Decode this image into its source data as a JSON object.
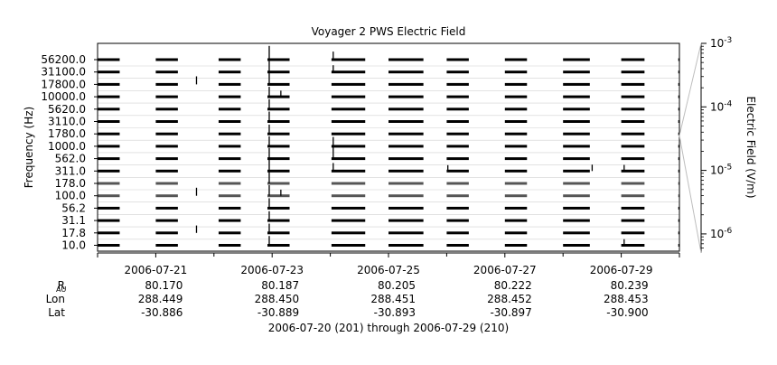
{
  "chart_data": {
    "type": "heatmap",
    "title": "Voyager 2 PWS Electric Field",
    "ylabel": "Frequency (Hz)",
    "colorbar_label": "Electric Field (V/m)",
    "colorbar_scale": "log",
    "colorbar_ticks": [
      {
        "base": "10",
        "exp": "-3",
        "value": 0.001
      },
      {
        "base": "10",
        "exp": "-4",
        "value": 0.0001
      },
      {
        "base": "10",
        "exp": "-5",
        "value": 1e-05
      },
      {
        "base": "10",
        "exp": "-6",
        "value": 1e-06
      }
    ],
    "channels": [
      "56200.0",
      "31100.0",
      "17800.0",
      "10000.0",
      "5620.0",
      "3110.0",
      "1780.0",
      "1000.0",
      "562.0",
      "311.0",
      "178.0",
      "100.0",
      "56.2",
      "31.1",
      "17.8",
      "10.0"
    ],
    "x_range_days": [
      201,
      211
    ],
    "x_tick_labels": [
      {
        "day": 202,
        "label": "2006-07-21"
      },
      {
        "day": 204,
        "label": "2006-07-23"
      },
      {
        "day": 206,
        "label": "2006-07-25"
      },
      {
        "day": 208,
        "label": "2006-07-27"
      },
      {
        "day": 210,
        "label": "2006-07-29"
      }
    ],
    "x_minor_days": [
      203,
      205,
      207,
      209
    ],
    "data_segments_days": [
      [
        201.0,
        201.38
      ],
      [
        202.0,
        202.38
      ],
      [
        203.08,
        203.46
      ],
      [
        203.92,
        204.3
      ],
      [
        205.02,
        205.6
      ],
      [
        206.0,
        206.6
      ],
      [
        207.0,
        207.38
      ],
      [
        208.0,
        208.38
      ],
      [
        209.0,
        209.46
      ],
      [
        210.0,
        210.4
      ],
      [
        210.98,
        211.0
      ]
    ],
    "grey_row_channels": [
      "178.0",
      "100.0"
    ],
    "bursts": [
      {
        "day": 203.95,
        "channel": "56200.0",
        "intensity": 0.8
      },
      {
        "day": 203.95,
        "channel": "31100.0",
        "intensity": 0.7
      },
      {
        "day": 203.95,
        "channel": "17800.0",
        "intensity": 0.6
      },
      {
        "day": 203.95,
        "channel": "10000.0",
        "intensity": 0.5
      },
      {
        "day": 203.95,
        "channel": "5620.0",
        "intensity": 0.5
      },
      {
        "day": 203.95,
        "channel": "3110.0",
        "intensity": 0.5
      },
      {
        "day": 203.95,
        "channel": "1780.0",
        "intensity": 0.45
      },
      {
        "day": 203.95,
        "channel": "1000.0",
        "intensity": 0.5
      },
      {
        "day": 203.95,
        "channel": "562.0",
        "intensity": 0.55
      },
      {
        "day": 203.95,
        "channel": "311.0",
        "intensity": 0.6
      },
      {
        "day": 203.95,
        "channel": "178.0",
        "intensity": 0.7
      },
      {
        "day": 203.95,
        "channel": "100.0",
        "intensity": 0.55
      },
      {
        "day": 203.95,
        "channel": "56.2",
        "intensity": 0.5
      },
      {
        "day": 203.95,
        "channel": "31.1",
        "intensity": 0.45
      },
      {
        "day": 203.95,
        "channel": "17.8",
        "intensity": 0.45
      },
      {
        "day": 203.95,
        "channel": "10.0",
        "intensity": 0.45
      },
      {
        "day": 205.05,
        "channel": "56200.0",
        "intensity": 0.35
      },
      {
        "day": 205.05,
        "channel": "31100.0",
        "intensity": 0.25
      },
      {
        "day": 205.05,
        "channel": "1000.0",
        "intensity": 0.45
      },
      {
        "day": 205.05,
        "channel": "562.0",
        "intensity": 0.75
      },
      {
        "day": 205.05,
        "channel": "311.0",
        "intensity": 0.35
      },
      {
        "day": 202.7,
        "channel": "17800.0",
        "intensity": 0.35
      },
      {
        "day": 202.7,
        "channel": "100.0",
        "intensity": 0.35
      },
      {
        "day": 202.7,
        "channel": "17.8",
        "intensity": 0.3
      },
      {
        "day": 204.15,
        "channel": "10000.0",
        "intensity": 0.2
      },
      {
        "day": 204.15,
        "channel": "100.0",
        "intensity": 0.2
      },
      {
        "day": 209.5,
        "channel": "311.0",
        "intensity": 0.22
      },
      {
        "day": 210.05,
        "channel": "10.0",
        "intensity": 0.2
      },
      {
        "day": 210.05,
        "channel": "311.0",
        "intensity": 0.2
      },
      {
        "day": 207.02,
        "channel": "311.0",
        "intensity": 0.18
      }
    ]
  },
  "ephemeris": {
    "row_labels": [
      "R",
      "Lon",
      "Lat"
    ],
    "r_subscript": "AU",
    "rows": [
      [
        "80.170",
        "80.187",
        "80.205",
        "80.222",
        "80.239"
      ],
      [
        "288.449",
        "288.450",
        "288.451",
        "288.452",
        "288.453"
      ],
      [
        "-30.886",
        "-30.889",
        "-30.893",
        "-30.897",
        "-30.900"
      ]
    ]
  },
  "footer_text": "2006-07-20 (201) through 2006-07-29 (210)"
}
